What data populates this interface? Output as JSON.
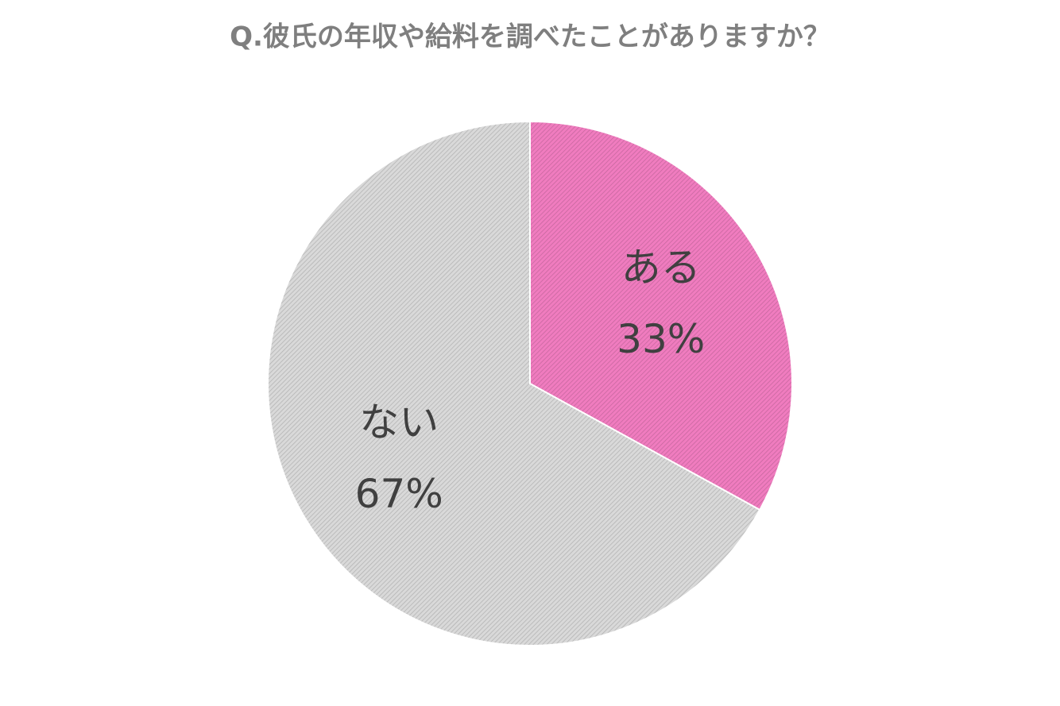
{
  "chart_data": {
    "type": "pie",
    "title": "Q.彼氏の年収や給料を調べたことがありますか？",
    "categories": [
      "ある",
      "ない"
    ],
    "values": [
      33,
      67
    ],
    "value_labels": [
      "33%",
      "67%"
    ],
    "colors": [
      "#f07cbf",
      "#d9d9d9"
    ]
  }
}
